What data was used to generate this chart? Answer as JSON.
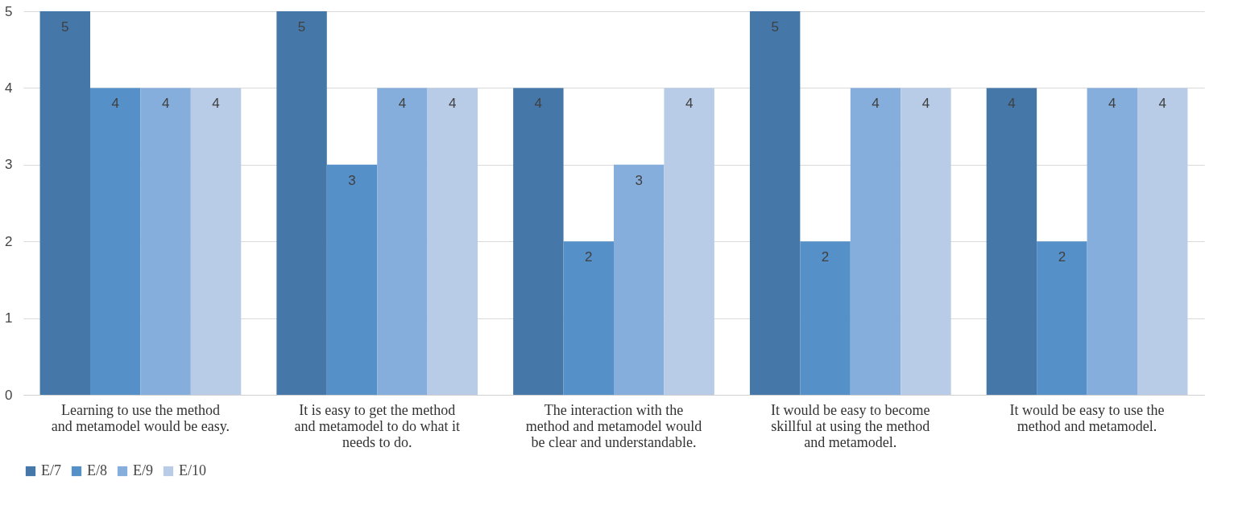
{
  "chart_data": {
    "type": "bar",
    "categories": [
      "Learning to use the method and metamodel would be easy.",
      "It is easy to get the method and metamodel to do what it needs to do.",
      "The interaction with the method and metamodel would be clear and understandable.",
      "It would be easy to become skillful at using the method and metamodel.",
      "It would be easy to use the method and metamodel."
    ],
    "series": [
      {
        "name": "E/7",
        "color": "#4577a8",
        "values": [
          5,
          5,
          4,
          5,
          4
        ]
      },
      {
        "name": "E/8",
        "color": "#5590c8",
        "values": [
          4,
          3,
          2,
          2,
          2
        ]
      },
      {
        "name": "E/9",
        "color": "#86aedc",
        "values": [
          4,
          4,
          3,
          4,
          4
        ]
      },
      {
        "name": "E/10",
        "color": "#b8cce8",
        "values": [
          4,
          4,
          4,
          4,
          4
        ]
      }
    ],
    "ylim": [
      0,
      5
    ],
    "yticks": [
      0,
      1,
      2,
      3,
      4,
      5
    ],
    "grid": "y",
    "legend": "bottom",
    "data_labels": true
  }
}
